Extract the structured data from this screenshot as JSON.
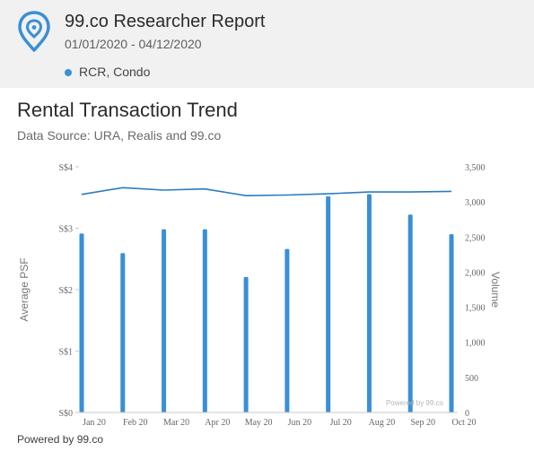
{
  "header": {
    "title": "99.co Researcher Report",
    "date_range": "01/01/2020 - 04/12/2020",
    "filter_label": "RCR, Condo",
    "logo_icon": "map-pin-icon",
    "accent_color": "#3a8fd6"
  },
  "section": {
    "title": "Rental Transaction Trend",
    "source": "Data Source: URA, Realis and 99.co"
  },
  "footer": {
    "text": "Powered by 99.co"
  },
  "chart_data": {
    "type": "bar+line",
    "categories": [
      "Jan 20",
      "Feb 20",
      "Mar 20",
      "Apr 20",
      "May 20",
      "Jun 20",
      "Jul 20",
      "Aug 20",
      "Sep 20",
      "Oct 20"
    ],
    "series": [
      {
        "type": "line",
        "axis": "left",
        "color": "#2b7bbf",
        "values": [
          3.55,
          3.66,
          3.62,
          3.64,
          3.53,
          3.54,
          3.56,
          3.59,
          3.59,
          3.6
        ]
      },
      {
        "type": "bar",
        "axis": "right",
        "color": "#3a8fd6",
        "values": [
          2550,
          2270,
          2610,
          2610,
          1930,
          2330,
          3080,
          3110,
          2820,
          2540
        ]
      }
    ],
    "ylabel": "Average PSF",
    "y2label": "Volume",
    "ylim": [
      0,
      4
    ],
    "y2lim": [
      0,
      3500
    ],
    "yticks": [
      "S$0",
      "S$1",
      "S$2",
      "S$3",
      "S$4"
    ],
    "y2ticks": [
      "0",
      "500",
      "1,000",
      "1,500",
      "2,000",
      "2,500",
      "3,000",
      "3,500"
    ],
    "watermark": "Powered by 99.co",
    "grid": false
  }
}
